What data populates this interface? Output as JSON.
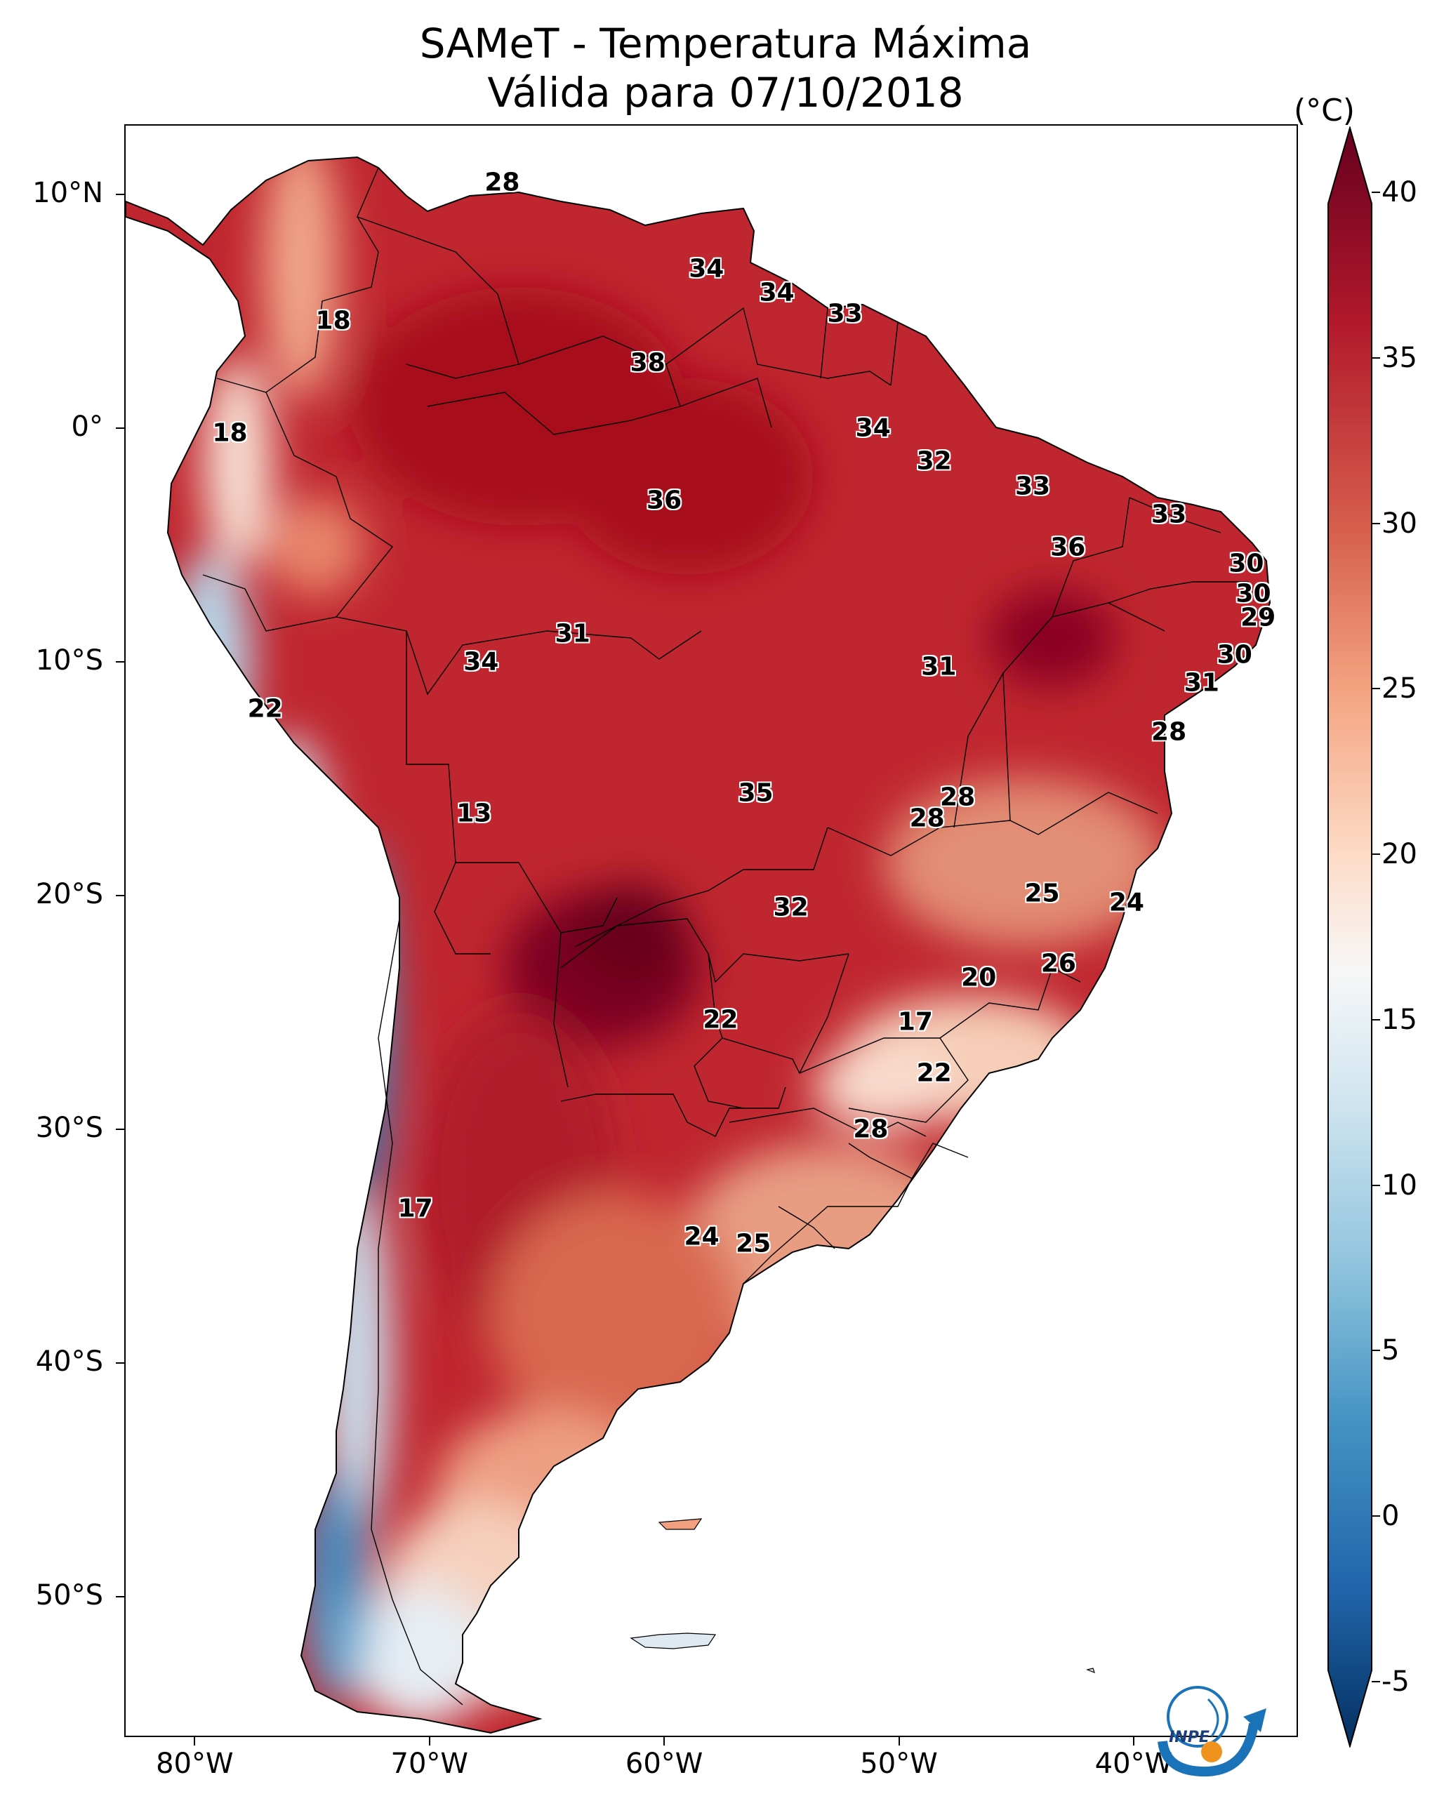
{
  "title": "SAMeT - Temperatura Máxima",
  "subtitle": "Válida para 07/10/2018",
  "colorbar": {
    "unit": "(°C)",
    "min": -7,
    "max": 42,
    "ticks": [
      "40",
      "35",
      "30",
      "25",
      "20",
      "15",
      "10",
      "5",
      "0",
      "-5"
    ],
    "tick_values": [
      40,
      35,
      30,
      25,
      20,
      15,
      10,
      5,
      0,
      -5
    ],
    "extend": "both",
    "colormap": [
      "#053061",
      "#2166ac",
      "#4393c3",
      "#92c5de",
      "#d1e5f0",
      "#f7f7f7",
      "#fddbc7",
      "#f4a582",
      "#d6604d",
      "#b2182b",
      "#67001f"
    ]
  },
  "axes": {
    "lat_labels": [
      "10°N",
      "0°",
      "10°S",
      "20°S",
      "30°S",
      "40°S",
      "50°S"
    ],
    "lat_values": [
      10,
      0,
      -10,
      -20,
      -30,
      -40,
      -50
    ],
    "lon_labels": [
      "80°W",
      "70°W",
      "60°W",
      "50°W",
      "40°W"
    ],
    "lon_values": [
      -80,
      -70,
      -60,
      -50,
      -40
    ],
    "extent": {
      "lon_min": -83,
      "lon_max": -33,
      "lat_min": -56,
      "lat_max": 13
    }
  },
  "cities": [
    {
      "t": "28",
      "lon": -66.9,
      "lat": 10.5
    },
    {
      "t": "34",
      "lon": -58.2,
      "lat": 6.8
    },
    {
      "t": "34",
      "lon": -55.2,
      "lat": 5.8
    },
    {
      "t": "33",
      "lon": -52.3,
      "lat": 4.9
    },
    {
      "t": "18",
      "lon": -74.1,
      "lat": 4.6
    },
    {
      "t": "38",
      "lon": -60.7,
      "lat": 2.8
    },
    {
      "t": "18",
      "lon": -78.5,
      "lat": -0.2
    },
    {
      "t": "34",
      "lon": -51.1,
      "lat": 0.0
    },
    {
      "t": "32",
      "lon": -48.5,
      "lat": -1.4
    },
    {
      "t": "33",
      "lon": -44.3,
      "lat": -2.5
    },
    {
      "t": "36",
      "lon": -60.0,
      "lat": -3.1
    },
    {
      "t": "33",
      "lon": -38.5,
      "lat": -3.7
    },
    {
      "t": "36",
      "lon": -42.8,
      "lat": -5.1
    },
    {
      "t": "30",
      "lon": -35.2,
      "lat": -5.8
    },
    {
      "t": "30",
      "lon": -34.9,
      "lat": -7.1
    },
    {
      "t": "29",
      "lon": -34.7,
      "lat": -8.1
    },
    {
      "t": "31",
      "lon": -63.9,
      "lat": -8.8
    },
    {
      "t": "30",
      "lon": -35.7,
      "lat": -9.7
    },
    {
      "t": "34",
      "lon": -67.8,
      "lat": -10.0
    },
    {
      "t": "31",
      "lon": -48.3,
      "lat": -10.2
    },
    {
      "t": "31",
      "lon": -37.1,
      "lat": -10.9
    },
    {
      "t": "22",
      "lon": -77.0,
      "lat": -12.0
    },
    {
      "t": "28",
      "lon": -38.5,
      "lat": -13.0
    },
    {
      "t": "35",
      "lon": -56.1,
      "lat": -15.6
    },
    {
      "t": "28",
      "lon": -47.5,
      "lat": -15.8
    },
    {
      "t": "28",
      "lon": -48.8,
      "lat": -16.7
    },
    {
      "t": "13",
      "lon": -68.1,
      "lat": -16.5
    },
    {
      "t": "25",
      "lon": -43.9,
      "lat": -19.9
    },
    {
      "t": "24",
      "lon": -40.3,
      "lat": -20.3
    },
    {
      "t": "32",
      "lon": -54.6,
      "lat": -20.5
    },
    {
      "t": "26",
      "lon": -43.2,
      "lat": -22.9
    },
    {
      "t": "20",
      "lon": -46.6,
      "lat": -23.5
    },
    {
      "t": "22",
      "lon": -57.6,
      "lat": -25.3
    },
    {
      "t": "17",
      "lon": -49.3,
      "lat": -25.4
    },
    {
      "t": "22",
      "lon": -48.5,
      "lat": -27.6
    },
    {
      "t": "28",
      "lon": -51.2,
      "lat": -30.0
    },
    {
      "t": "17",
      "lon": -70.6,
      "lat": -33.4
    },
    {
      "t": "24",
      "lon": -58.4,
      "lat": -34.6
    },
    {
      "t": "25",
      "lon": -56.2,
      "lat": -34.9
    }
  ],
  "logo": {
    "text": "INPE"
  }
}
